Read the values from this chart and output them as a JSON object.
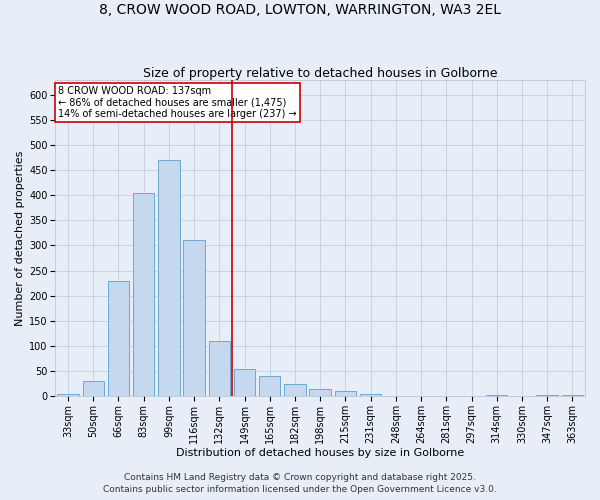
{
  "title_line1": "8, CROW WOOD ROAD, LOWTON, WARRINGTON, WA3 2EL",
  "title_line2": "Size of property relative to detached houses in Golborne",
  "xlabel": "Distribution of detached houses by size in Golborne",
  "ylabel": "Number of detached properties",
  "bar_labels": [
    "33sqm",
    "50sqm",
    "66sqm",
    "83sqm",
    "99sqm",
    "116sqm",
    "132sqm",
    "149sqm",
    "165sqm",
    "182sqm",
    "198sqm",
    "215sqm",
    "231sqm",
    "248sqm",
    "264sqm",
    "281sqm",
    "297sqm",
    "314sqm",
    "330sqm",
    "347sqm",
    "363sqm"
  ],
  "bar_values": [
    5,
    30,
    230,
    405,
    470,
    310,
    110,
    55,
    40,
    25,
    15,
    10,
    5,
    0,
    0,
    0,
    0,
    3,
    0,
    3,
    3
  ],
  "bar_color": "#c5d8ed",
  "bar_edge_color": "#6aaad4",
  "vline_color": "#cc0000",
  "annotation_text": "8 CROW WOOD ROAD: 137sqm\n← 86% of detached houses are smaller (1,475)\n14% of semi-detached houses are larger (237) →",
  "annotation_box_color": "#ffffff",
  "annotation_box_edge": "#cc0000",
  "ylim": [
    0,
    630
  ],
  "yticks": [
    0,
    50,
    100,
    150,
    200,
    250,
    300,
    350,
    400,
    450,
    500,
    550,
    600
  ],
  "footer_line1": "Contains HM Land Registry data © Crown copyright and database right 2025.",
  "footer_line2": "Contains public sector information licensed under the Open Government Licence v3.0.",
  "background_color": "#e8eef8",
  "plot_bg_color": "#e8eef8",
  "grid_color": "#c0cfe0",
  "title_fontsize": 10,
  "subtitle_fontsize": 9,
  "axis_label_fontsize": 8,
  "tick_fontsize": 7,
  "annotation_fontsize": 7,
  "footer_fontsize": 6.5
}
